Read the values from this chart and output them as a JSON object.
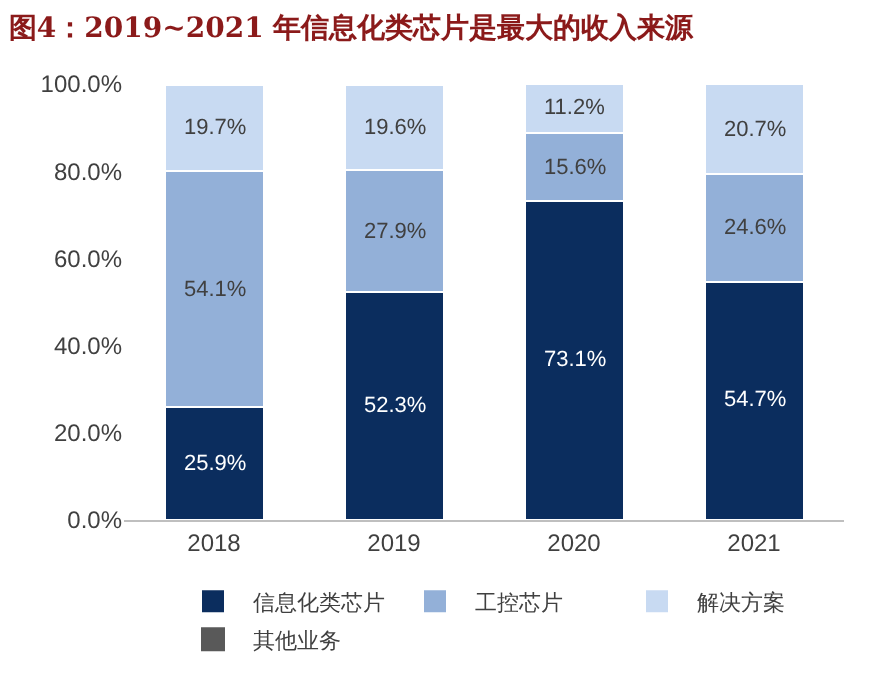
{
  "chart_data": {
    "type": "bar",
    "title": "图4：2019~2021 年信息化类芯片是最大的收入来源",
    "categories": [
      "2018",
      "2019",
      "2020",
      "2021"
    ],
    "stacked": true,
    "legend": "bottom",
    "grid": false,
    "ylim": [
      0,
      100
    ],
    "yticks": [
      {
        "value": 0,
        "label": "0.0%"
      },
      {
        "value": 20,
        "label": "20.0%"
      },
      {
        "value": 40,
        "label": "40.0%"
      },
      {
        "value": 60,
        "label": "60.0%"
      },
      {
        "value": 80,
        "label": "80.0%"
      },
      {
        "value": 100,
        "label": "100.0%"
      }
    ],
    "series": [
      {
        "name": "信息化类芯片",
        "color": "#0b2d5e",
        "values": [
          25.9,
          52.3,
          73.1,
          54.7
        ],
        "value_labels": [
          "25.9%",
          "52.3%",
          "73.1%",
          "54.7%"
        ]
      },
      {
        "name": "工控芯片",
        "color": "#93b0d8",
        "values": [
          54.1,
          27.9,
          15.6,
          24.6
        ],
        "value_labels": [
          "54.1%",
          "27.9%",
          "15.6%",
          "24.6%"
        ]
      },
      {
        "name": "解决方案",
        "color": "#c8daf2",
        "values": [
          19.7,
          19.6,
          11.2,
          20.7
        ],
        "value_labels": [
          "19.7%",
          "19.6%",
          "11.2%",
          "20.7%"
        ]
      },
      {
        "name": "其他业务",
        "color": "#595959",
        "values": [
          null,
          null,
          null,
          null
        ],
        "value_labels": [
          null,
          null,
          null,
          null
        ]
      }
    ]
  }
}
